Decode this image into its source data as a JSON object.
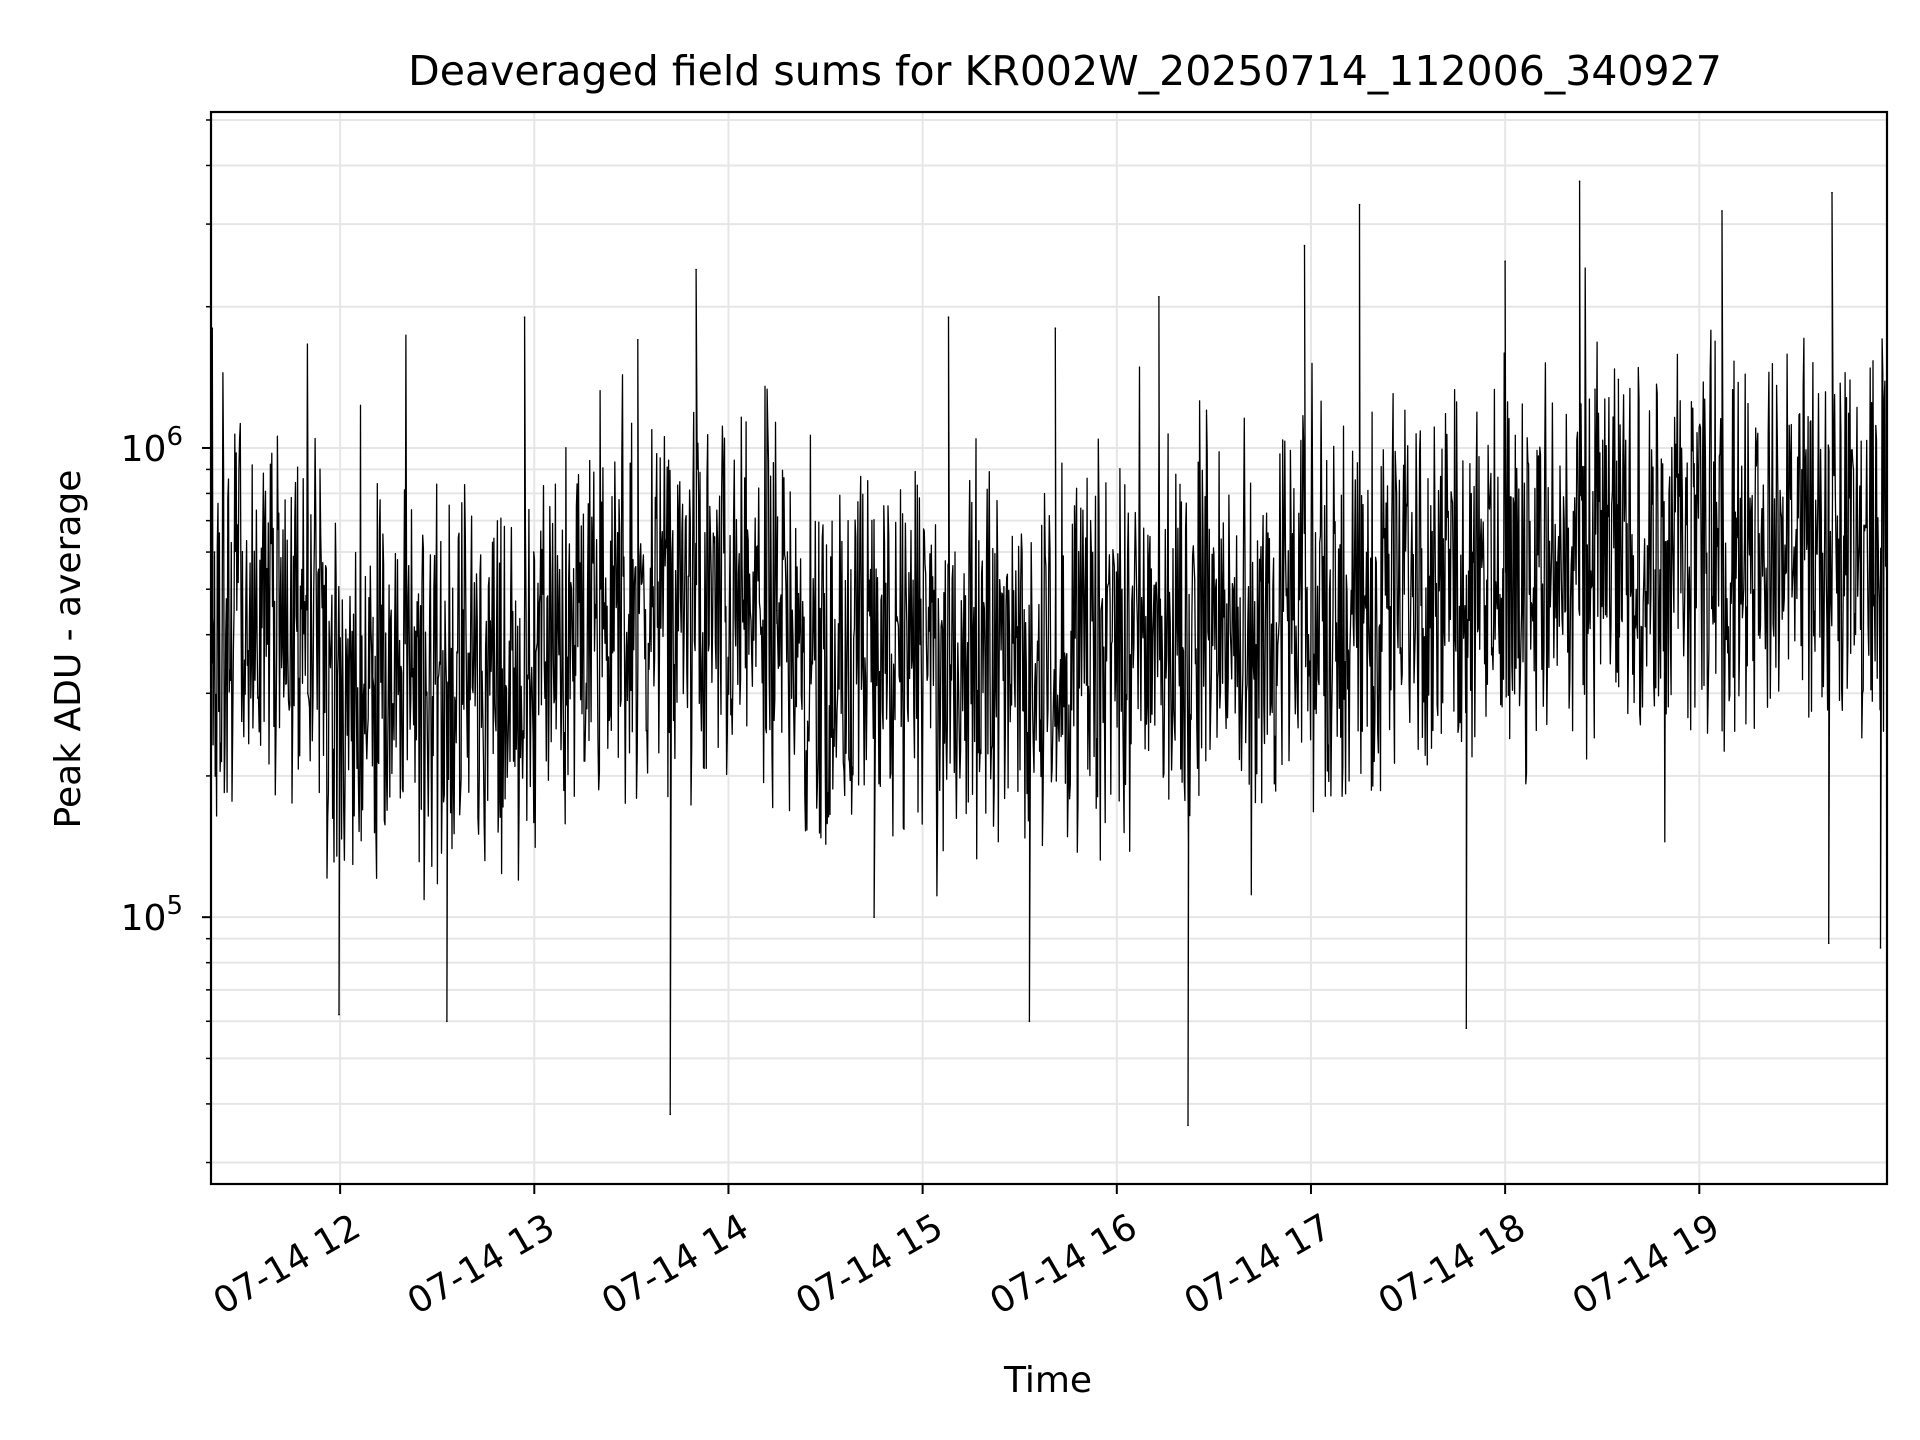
{
  "chart_data": {
    "type": "line",
    "title": "Deaveraged field sums for KR002W_20250714_112006_340927",
    "xlabel": "Time",
    "ylabel": "Peak ADU - average",
    "yscale": "log",
    "ylim": [
      27000,
      5200000
    ],
    "xlim": [
      "2025-07-14T11:20:06",
      "2025-07-14T19:58:00"
    ],
    "x_ticks": [
      {
        "value": "2025-07-14T12:00:00",
        "label": "07-14 12"
      },
      {
        "value": "2025-07-14T13:00:00",
        "label": "07-14 13"
      },
      {
        "value": "2025-07-14T14:00:00",
        "label": "07-14 14"
      },
      {
        "value": "2025-07-14T15:00:00",
        "label": "07-14 15"
      },
      {
        "value": "2025-07-14T16:00:00",
        "label": "07-14 16"
      },
      {
        "value": "2025-07-14T17:00:00",
        "label": "07-14 17"
      },
      {
        "value": "2025-07-14T18:00:00",
        "label": "07-14 18"
      },
      {
        "value": "2025-07-14T19:00:00",
        "label": "07-14 19"
      }
    ],
    "y_ticks": [
      {
        "value": 100000,
        "base": "10",
        "exp": "5"
      },
      {
        "value": 1000000,
        "base": "10",
        "exp": "6"
      }
    ],
    "grid": true,
    "line_color": "#000000",
    "grid_color": "#e6e6e6",
    "series": [
      {
        "x": [
          "2025-07-14T11:20:06",
          "2025-07-14T11:20:30",
          "2025-07-14T11:21:10",
          "2025-07-14T11:50:00",
          "2025-07-14T11:59:40",
          "2025-07-14T12:10:00",
          "2025-07-14T12:33:00",
          "2025-07-14T12:57:00",
          "2025-07-14T12:59:50",
          "2025-07-14T13:32:00",
          "2025-07-14T13:42:00",
          "2025-07-14T13:50:00",
          "2025-07-14T14:15:00",
          "2025-07-14T14:45:00",
          "2025-07-14T15:08:00",
          "2025-07-14T15:33:00",
          "2025-07-14T15:41:00",
          "2025-07-14T16:13:00",
          "2025-07-14T16:22:00",
          "2025-07-14T16:30:00",
          "2025-07-14T16:58:00",
          "2025-07-14T17:15:00",
          "2025-07-14T17:48:00",
          "2025-07-14T18:00:00",
          "2025-07-14T18:23:00",
          "2025-07-14T18:35:00",
          "2025-07-14T19:07:00",
          "2025-07-14T19:40:00",
          "2025-07-14T19:41:00",
          "2025-07-14T19:56:00"
        ],
        "values": [
          110000,
          1800000,
          600000,
          300000,
          62000,
          330000,
          60000,
          1900000,
          600000,
          1700000,
          38000,
          2400000,
          450000,
          100000,
          1900000,
          60000,
          1800000,
          2100000,
          36000,
          600000,
          2700000,
          3300000,
          58000,
          2500000,
          3700000,
          1400000,
          3200000,
          88000,
          3500000,
          86000
        ]
      }
    ]
  }
}
